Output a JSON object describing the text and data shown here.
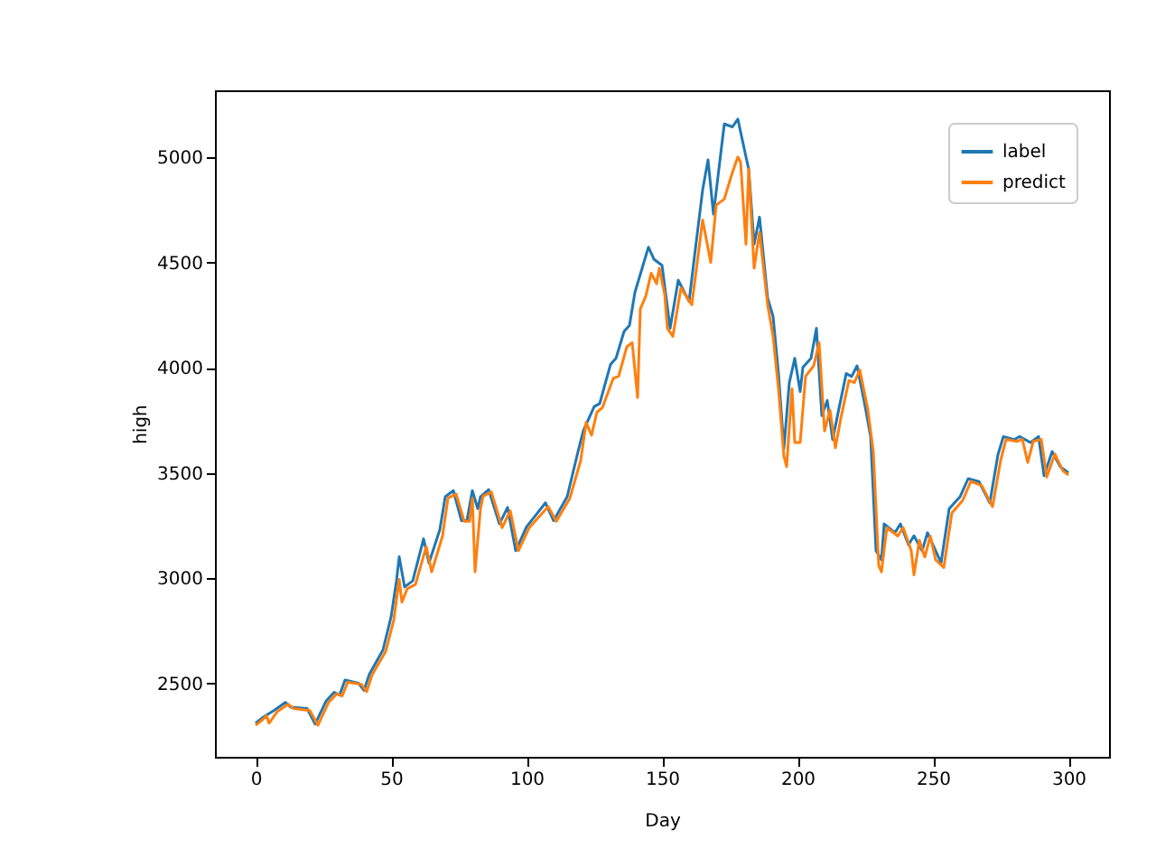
{
  "chart_data": {
    "type": "line",
    "xlabel": "Day",
    "ylabel": "high",
    "xlim": [
      -15,
      315
    ],
    "ylim": [
      2150,
      5320
    ],
    "xticks": [
      0,
      50,
      100,
      150,
      200,
      250,
      300
    ],
    "yticks": [
      2500,
      3000,
      3500,
      4000,
      4500,
      5000
    ],
    "grid": false,
    "legend": "top right",
    "marker": "none",
    "line_style": "solid",
    "series": [
      {
        "name": "label",
        "color": "#1f77b4",
        "x": [
          0,
          3,
          7,
          11,
          13,
          19,
          22,
          26,
          29,
          31,
          33,
          38,
          40,
          42,
          47,
          50,
          52,
          53,
          55,
          58,
          60,
          62,
          64,
          68,
          70,
          73,
          76,
          78,
          80,
          82,
          83,
          86,
          90,
          93,
          96,
          100,
          107,
          110,
          115,
          119,
          121,
          125,
          127,
          131,
          133,
          136,
          138,
          140,
          142,
          145,
          147,
          150,
          153,
          156,
          160,
          162,
          165,
          167,
          169,
          171,
          173,
          176,
          178,
          181,
          182,
          184,
          186,
          189,
          191,
          193,
          195,
          197,
          199,
          201,
          202,
          205,
          207,
          209,
          211,
          213,
          215,
          218,
          220,
          222,
          225,
          227,
          229,
          231,
          232,
          236,
          238,
          241,
          243,
          246,
          248,
          253,
          256,
          260,
          263,
          267,
          271,
          274,
          276,
          280,
          282,
          286,
          289,
          291,
          294,
          297,
          300
        ],
        "values": [
          2310,
          2340,
          2372,
          2409,
          2386,
          2380,
          2306,
          2415,
          2457,
          2443,
          2515,
          2500,
          2466,
          2543,
          2658,
          2815,
          2987,
          3101,
          2958,
          2987,
          3087,
          3187,
          3072,
          3230,
          3387,
          3416,
          3273,
          3273,
          3416,
          3330,
          3387,
          3421,
          3258,
          3336,
          3130,
          3244,
          3358,
          3273,
          3387,
          3601,
          3702,
          3816,
          3830,
          4016,
          4045,
          4173,
          4202,
          4359,
          4445,
          4574,
          4517,
          4488,
          4188,
          4417,
          4316,
          4531,
          4846,
          4989,
          4731,
          4946,
          5160,
          5146,
          5183,
          5003,
          4946,
          4588,
          4717,
          4331,
          4245,
          3973,
          3616,
          3930,
          4045,
          3887,
          4002,
          4045,
          4188,
          3773,
          3845,
          3659,
          3787,
          3973,
          3959,
          4010,
          3816,
          3673,
          3130,
          3087,
          3258,
          3216,
          3258,
          3158,
          3201,
          3130,
          3216,
          3073,
          3330,
          3387,
          3473,
          3459,
          3358,
          3587,
          3673,
          3659,
          3673,
          3645,
          3673,
          3487,
          3602,
          3530,
          3501
        ]
      },
      {
        "name": "predict",
        "color": "#ff7f0e",
        "x": [
          0,
          2,
          4,
          5,
          8,
          12,
          14,
          20,
          23,
          27,
          30,
          32,
          34,
          39,
          41,
          43,
          48,
          51,
          53,
          54,
          56,
          59,
          61,
          63,
          65,
          69,
          71,
          74,
          77,
          79,
          80,
          81,
          83,
          84,
          87,
          91,
          94,
          97,
          101,
          108,
          111,
          116,
          120,
          122,
          124,
          126,
          128,
          132,
          134,
          137,
          139,
          141,
          142,
          144,
          146,
          148,
          149,
          151,
          152,
          154,
          157,
          161,
          163,
          165,
          168,
          170,
          173,
          176,
          178,
          179,
          181,
          182,
          184,
          186,
          189,
          191,
          193,
          195,
          196,
          198,
          199,
          201,
          203,
          206,
          208,
          210,
          212,
          214,
          216,
          219,
          221,
          223,
          226,
          228,
          230,
          231,
          233,
          237,
          239,
          242,
          243,
          245,
          247,
          249,
          251,
          254,
          257,
          261,
          264,
          268,
          272,
          275,
          277,
          281,
          283,
          285,
          287,
          290,
          292,
          295,
          298,
          300
        ],
        "values": [
          2300,
          2320,
          2345,
          2310,
          2365,
          2400,
          2380,
          2370,
          2300,
          2410,
          2450,
          2440,
          2505,
          2495,
          2460,
          2540,
          2650,
          2800,
          2994,
          2886,
          2950,
          2970,
          3060,
          3150,
          3030,
          3200,
          3380,
          3400,
          3270,
          3270,
          3380,
          3030,
          3330,
          3390,
          3410,
          3240,
          3320,
          3130,
          3240,
          3340,
          3270,
          3380,
          3560,
          3740,
          3680,
          3790,
          3810,
          3950,
          3960,
          4100,
          4120,
          3859,
          4280,
          4340,
          4450,
          4400,
          4474,
          4350,
          4188,
          4150,
          4380,
          4300,
          4500,
          4703,
          4502,
          4774,
          4803,
          4930,
          5003,
          4980,
          4588,
          4946,
          4474,
          4645,
          4300,
          4150,
          3900,
          3580,
          3530,
          3900,
          3645,
          3645,
          3960,
          4010,
          4120,
          3700,
          3800,
          3620,
          3760,
          3940,
          3930,
          3990,
          3800,
          3600,
          3060,
          3030,
          3240,
          3200,
          3240,
          3130,
          3015,
          3180,
          3100,
          3200,
          3087,
          3050,
          3310,
          3370,
          3460,
          3440,
          3340,
          3560,
          3660,
          3650,
          3660,
          3550,
          3650,
          3660,
          3480,
          3590,
          3510,
          3490
        ]
      }
    ]
  }
}
